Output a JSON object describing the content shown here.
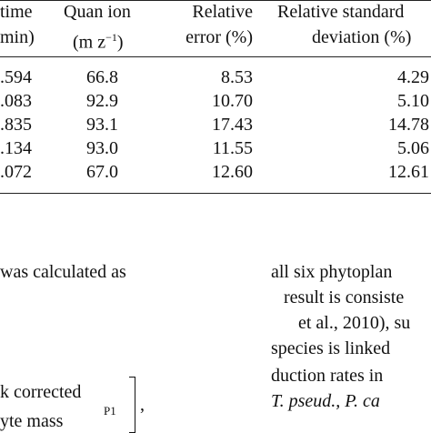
{
  "table": {
    "headers": {
      "time_line1": "time",
      "time_line2": "min)",
      "quan_line1": "Quan ion",
      "quan_line2_pre": "(m z",
      "quan_line2_sup": "−1",
      "quan_line2_post": ")",
      "rel_err_line1": "Relative",
      "rel_err_line2": "error (%)",
      "rsd_line1": "Relative standard",
      "rsd_line2": "deviation (%)"
    },
    "rows": [
      {
        "time": ".594",
        "quan": "66.8",
        "err": "8.53",
        "rsd": "4.29"
      },
      {
        "time": ".083",
        "quan": "92.9",
        "err": "10.70",
        "rsd": "5.10"
      },
      {
        "time": ".835",
        "quan": "93.1",
        "err": "17.43",
        "rsd": "14.78"
      },
      {
        "time": ".134",
        "quan": "93.0",
        "err": "11.55",
        "rsd": "5.06"
      },
      {
        "time": ".072",
        "quan": "67.0",
        "err": "12.60",
        "rsd": "12.61"
      }
    ]
  },
  "left_text": {
    "line1": "was calculated as",
    "line2": "k corrected",
    "line3": "yte mass",
    "subscript": "P1",
    "comma": ","
  },
  "right_text": {
    "line1": "all six phytoplan",
    "line2": "result is consiste",
    "line3": "et al., 2010), su",
    "line4": "species is linked",
    "line5": "duction rates in",
    "line6": "T. pseud., P. ca"
  }
}
